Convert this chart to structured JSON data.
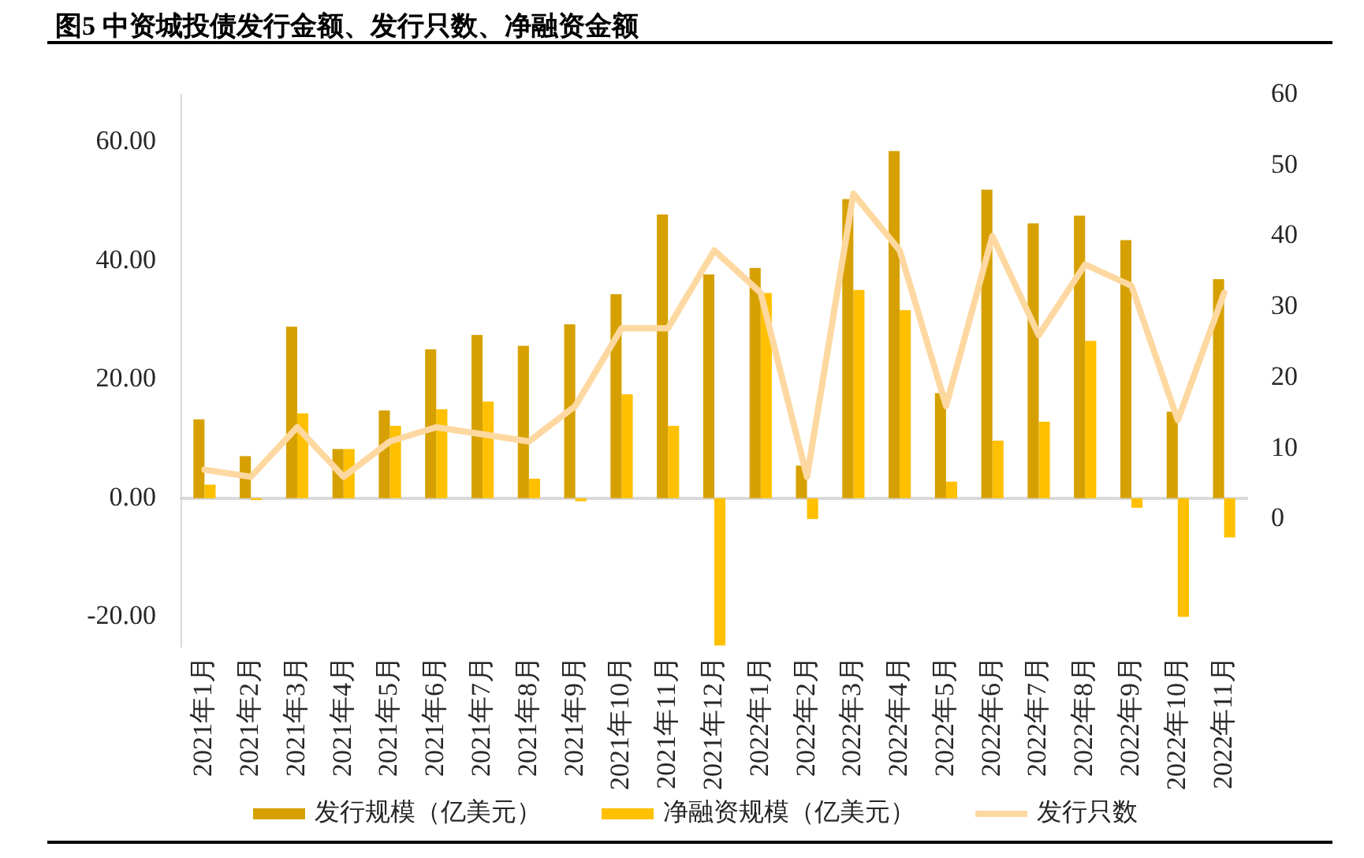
{
  "chart_data": {
    "type": "bar",
    "title": "图5 中资城投债发行金额、发行只数、净融资金额",
    "categories": [
      "2021年1月",
      "2021年2月",
      "2021年3月",
      "2021年4月",
      "2021年5月",
      "2021年6月",
      "2021年7月",
      "2021年8月",
      "2021年9月",
      "2021年10月",
      "2021年11月",
      "2021年12月",
      "2022年1月",
      "2022年2月",
      "2022年3月",
      "2022年4月",
      "2022年5月",
      "2022年6月",
      "2022年7月",
      "2022年8月",
      "2022年9月",
      "2022年10月",
      "2022年11月"
    ],
    "series": [
      {
        "name": "发行规模（亿美元）",
        "color": "#d6a100",
        "values": [
          13.3,
          7.1,
          28.9,
          8.3,
          14.8,
          25.1,
          27.5,
          25.7,
          29.3,
          34.4,
          47.8,
          37.7,
          38.8,
          5.5,
          50.4,
          58.5,
          17.7,
          52.0,
          46.3,
          47.6,
          43.5,
          14.6,
          36.9
        ]
      },
      {
        "name": "净融资规模（亿美元）",
        "color": "#ffc000",
        "values": [
          2.3,
          -0.3,
          14.3,
          8.3,
          12.2,
          15.0,
          16.3,
          3.3,
          -0.5,
          17.5,
          12.2,
          -24.8,
          34.6,
          -3.5,
          35.1,
          31.7,
          2.8,
          9.7,
          12.9,
          26.5,
          -1.6,
          -20.0,
          -6.6
        ]
      },
      {
        "name": "发行只数",
        "type": "line",
        "axis": "y2",
        "color": "#fdd8a0",
        "values": [
          7,
          6,
          13,
          6,
          11,
          13,
          12,
          11,
          16,
          27,
          27,
          38,
          32,
          6,
          46,
          38,
          16,
          40,
          26,
          36,
          33,
          14,
          32
        ]
      }
    ],
    "ylim": [
      -25,
      68
    ],
    "yticks": [
      {
        "value": -20,
        "label": "-20.00"
      },
      {
        "value": 0,
        "label": "0.00"
      },
      {
        "value": 20,
        "label": "20.00"
      },
      {
        "value": 40,
        "label": "40.00"
      },
      {
        "value": 60,
        "label": "60.00"
      }
    ],
    "y2lim": [
      -18,
      60
    ],
    "y2ticks": [
      0,
      10,
      20,
      30,
      40,
      50,
      60
    ],
    "legend": "bottom",
    "line_style": "solid"
  }
}
